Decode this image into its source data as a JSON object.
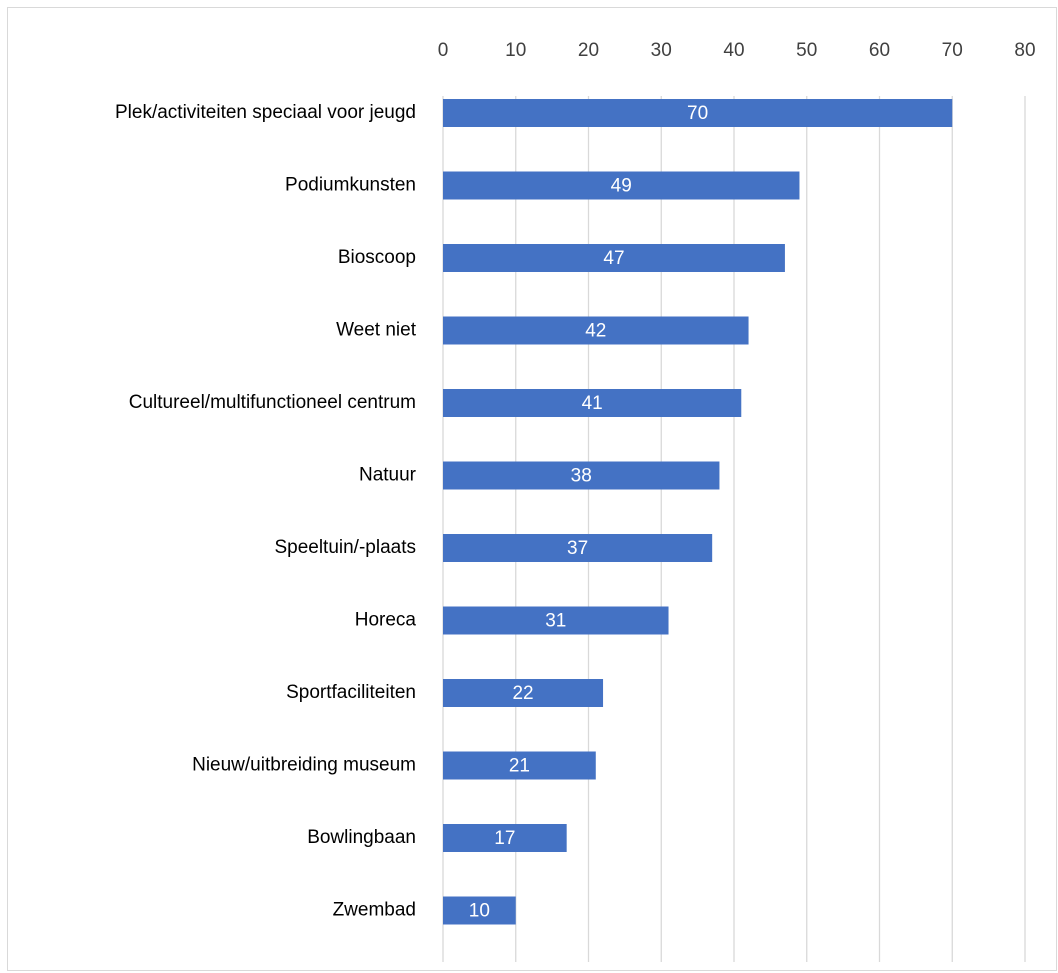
{
  "chart_data": {
    "type": "bar",
    "orientation": "horizontal",
    "categories": [
      "Plek/activiteiten speciaal voor jeugd",
      "Podiumkunsten",
      "Bioscoop",
      "Weet niet",
      "Cultureel/multifunctioneel centrum",
      "Natuur",
      "Speeltuin/-plaats",
      "Horeca",
      "Sportfaciliteiten",
      "Nieuw/uitbreiding museum",
      "Bowlingbaan",
      "Zwembad"
    ],
    "values": [
      70,
      49,
      47,
      42,
      41,
      38,
      37,
      31,
      22,
      21,
      17,
      10
    ],
    "xlim": [
      0,
      80
    ],
    "x_ticks": [
      0,
      10,
      20,
      30,
      40,
      50,
      60,
      70,
      80
    ],
    "x_axis_position": "top",
    "grid": true,
    "data_labels": true,
    "bar_color": "#4472c4",
    "grid_color": "#d9d9d9",
    "title": "",
    "xlabel": "",
    "ylabel": ""
  }
}
